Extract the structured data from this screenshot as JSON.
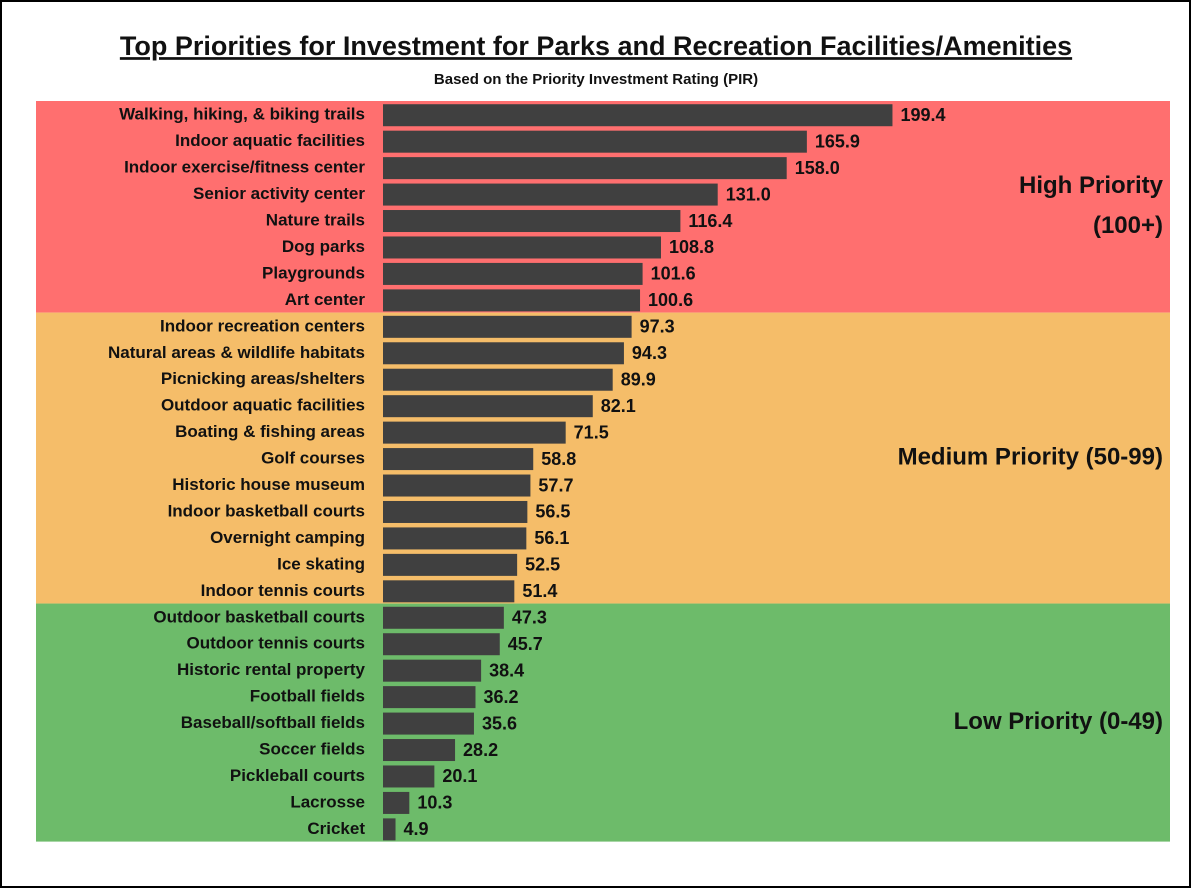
{
  "chart_data": {
    "type": "bar",
    "title": "Top Priorities for Investment for Parks and Recreation Facilities/Amenities",
    "subtitle": "Based on the Priority Investment Rating (PIR)",
    "xlim": [
      0,
      200
    ],
    "bar_color": "#404040",
    "groups": [
      {
        "label": [
          "High Priority",
          "(100+)"
        ],
        "color": "#ff6f6f",
        "categories": [
          "Walking, hiking, & biking trails",
          "Indoor aquatic facilities",
          "Indoor exercise/fitness center",
          "Senior activity center",
          "Nature trails",
          "Dog parks",
          "Playgrounds",
          "Art center"
        ],
        "values": [
          199.4,
          165.9,
          158.0,
          131.0,
          116.4,
          108.8,
          101.6,
          100.6
        ],
        "value_labels": [
          "199.4",
          "165.9",
          "158.0",
          "131.0",
          "116.4",
          "108.8",
          "101.6",
          "100.6"
        ]
      },
      {
        "label": [
          "Medium Priority (50-99)"
        ],
        "color": "#f5bd69",
        "categories": [
          "Indoor recreation centers",
          "Natural areas & wildlife habitats",
          "Picnicking areas/shelters",
          "Outdoor aquatic facilities",
          "Boating & fishing areas",
          "Golf courses",
          "Historic house museum",
          "Indoor basketball courts",
          "Overnight camping",
          "Ice skating",
          "Indoor tennis courts"
        ],
        "values": [
          97.3,
          94.3,
          89.9,
          82.1,
          71.5,
          58.8,
          57.7,
          56.5,
          56.1,
          52.5,
          51.4
        ],
        "value_labels": [
          "97.3",
          "94.3",
          "89.9",
          "82.1",
          "71.5",
          "58.8",
          "57.7",
          "56.5",
          "56.1",
          "52.5",
          "51.4"
        ]
      },
      {
        "label": [
          "Low Priority (0-49)"
        ],
        "color": "#6dbb6a",
        "categories": [
          "Outdoor basketball courts",
          "Outdoor tennis courts",
          "Historic rental property",
          "Football fields",
          "Baseball/softball fields",
          "Soccer fields",
          "Pickleball courts",
          "Lacrosse",
          "Cricket"
        ],
        "values": [
          47.3,
          45.7,
          38.4,
          36.2,
          35.6,
          28.2,
          20.1,
          10.3,
          4.9
        ],
        "value_labels": [
          "47.3",
          "45.7",
          "38.4",
          "36.2",
          "35.6",
          "28.2",
          "20.1",
          "10.3",
          "4.9"
        ]
      }
    ]
  }
}
